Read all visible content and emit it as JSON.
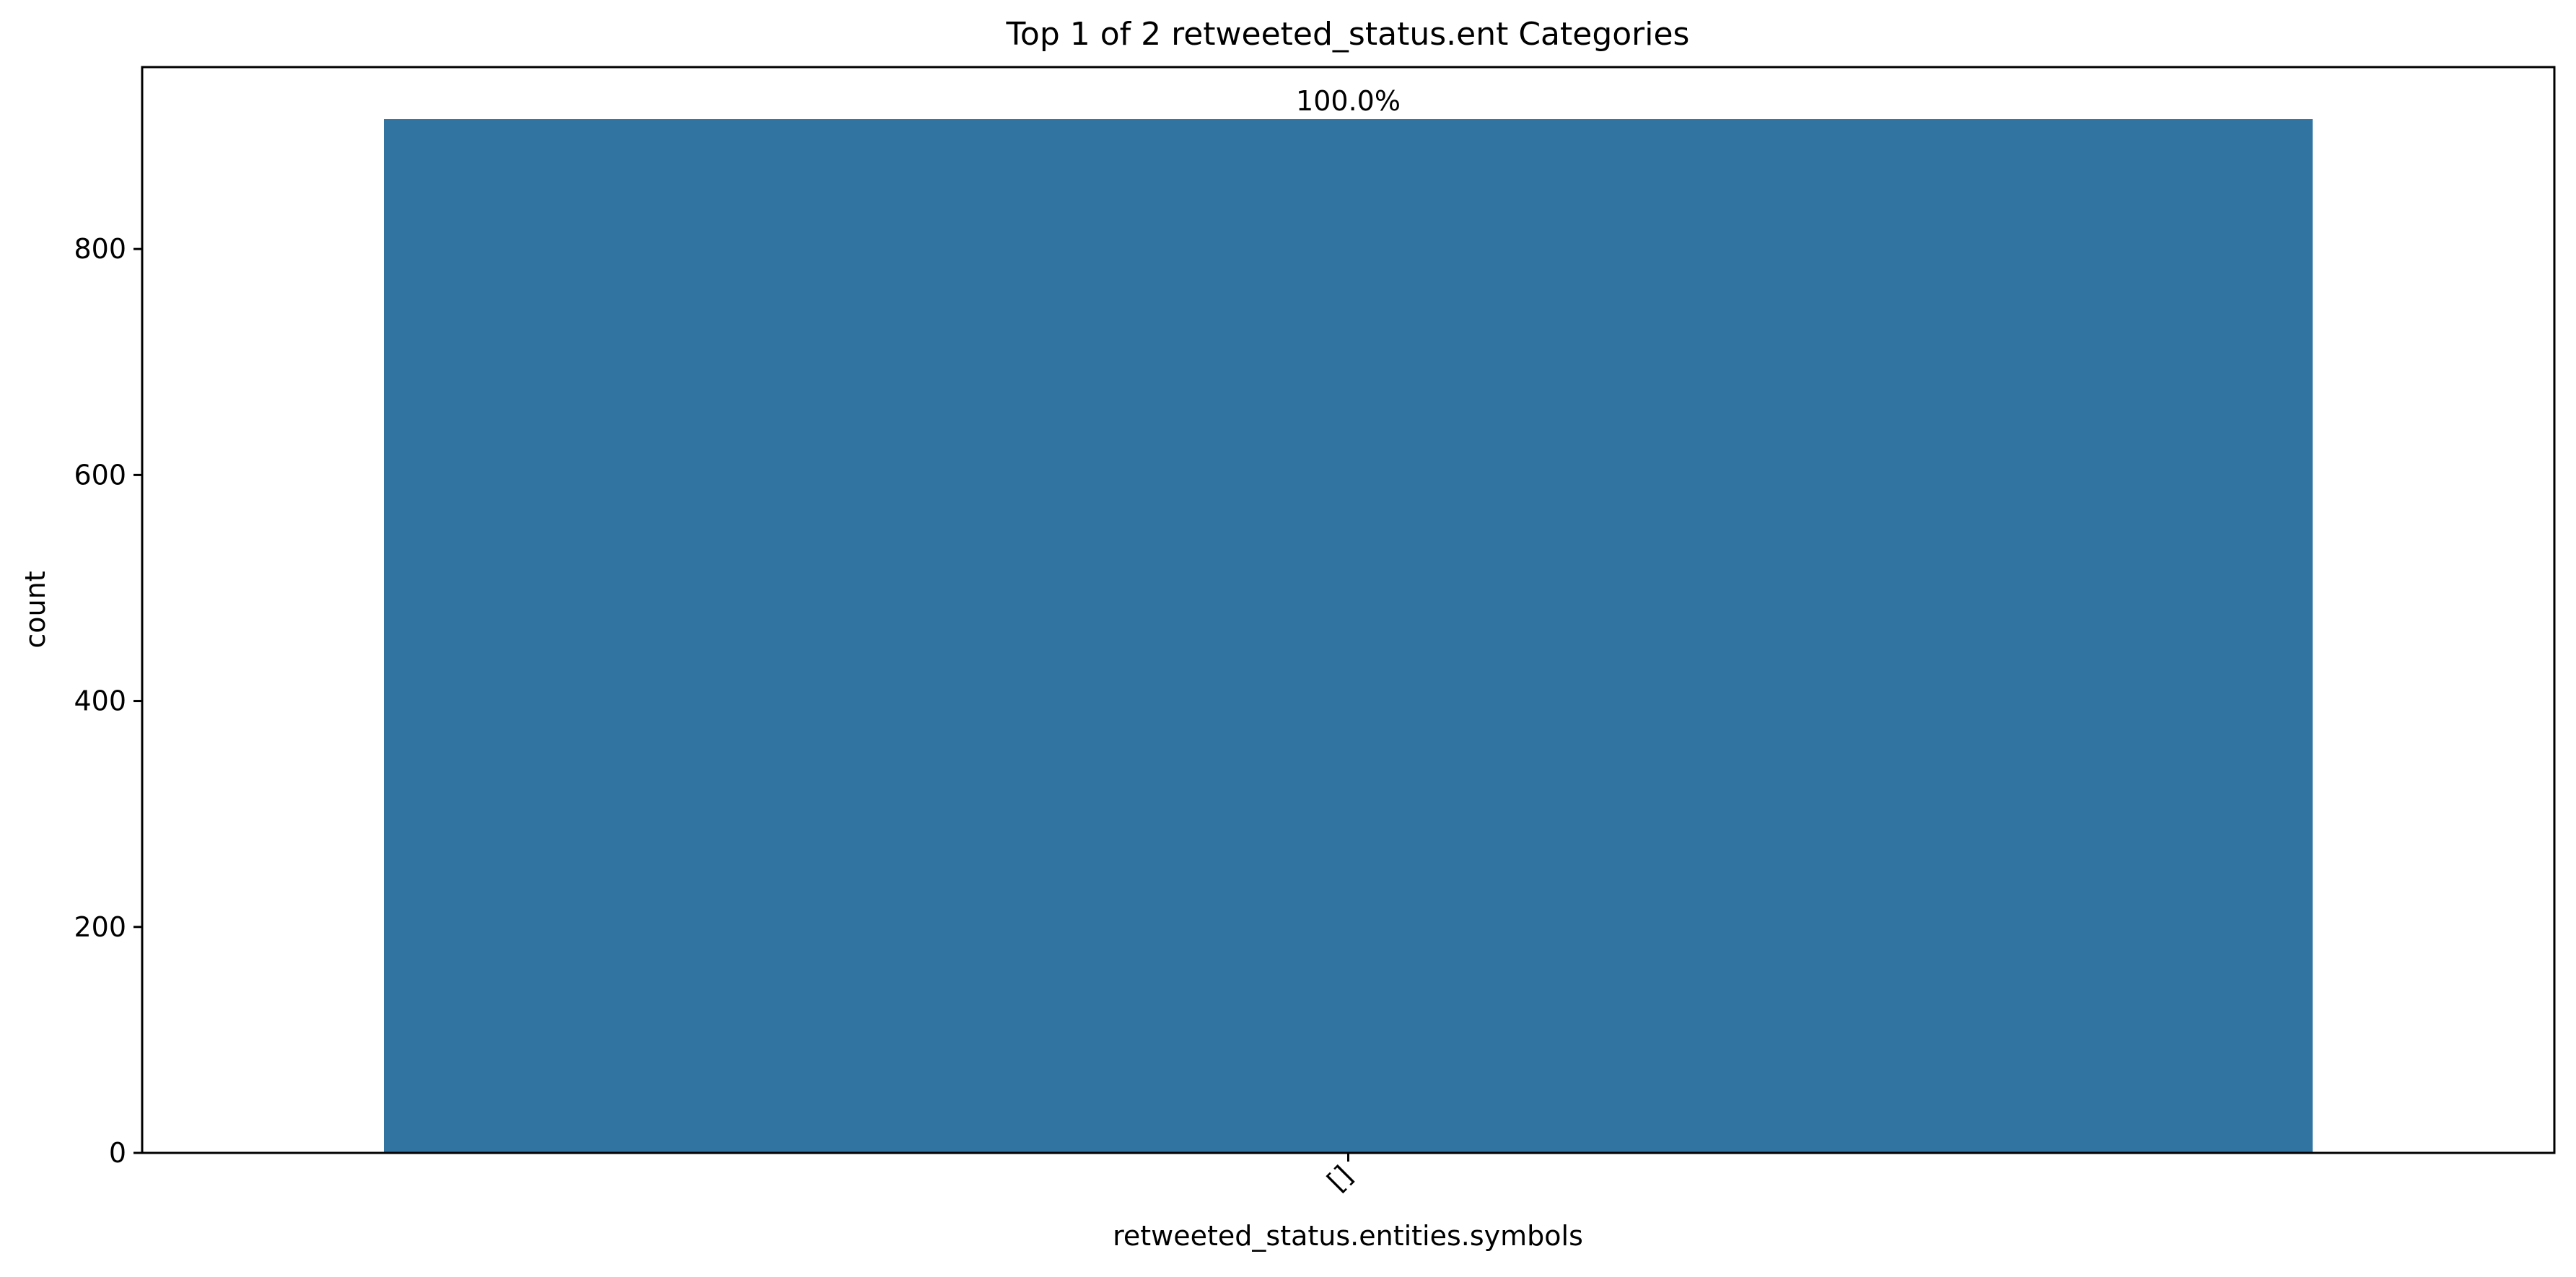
{
  "chart_data": {
    "type": "bar",
    "title": "Top 1 of 2 retweeted_status.ent Categories",
    "xlabel": "retweeted_status.entities.symbols",
    "ylabel": "count",
    "categories": [
      "[]"
    ],
    "values": [
      915
    ],
    "bar_labels": [
      "100.0%"
    ],
    "ylim": [
      0,
      961
    ],
    "yticks": [
      0,
      200,
      400,
      600,
      800
    ],
    "ytick_labels": [
      "0",
      "200",
      "400",
      "600",
      "800"
    ],
    "xtick_rotation_deg": 45,
    "grid": false,
    "legend": "none",
    "colors": {
      "bar": "#3274a1",
      "axes": "#000000",
      "background": "#ffffff"
    }
  }
}
